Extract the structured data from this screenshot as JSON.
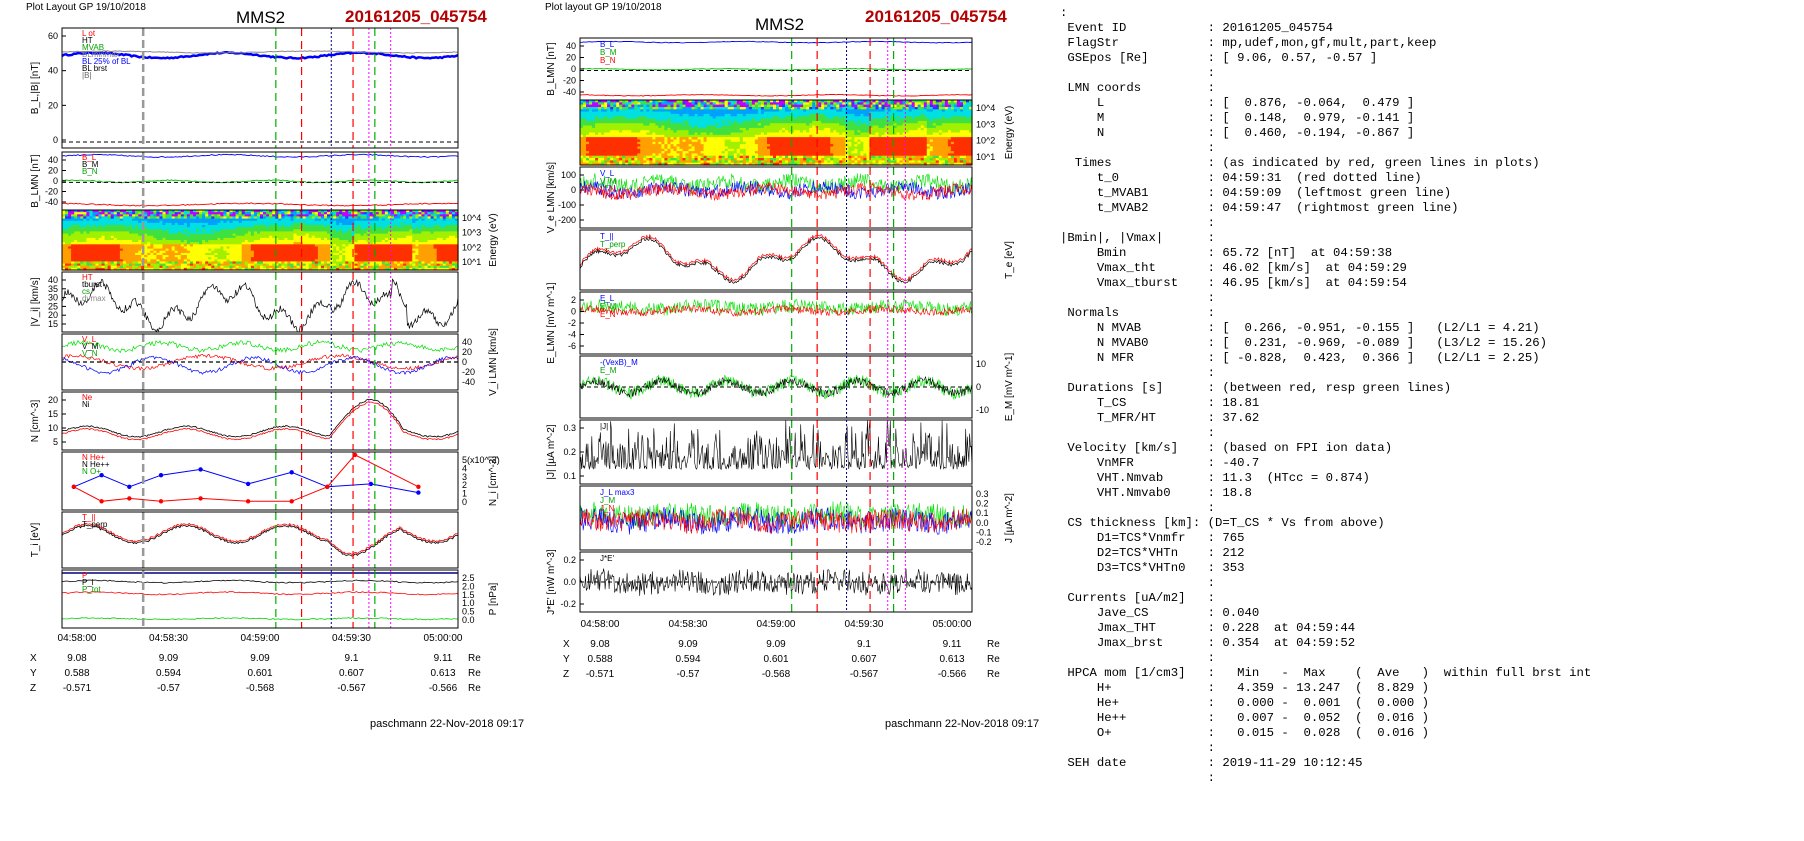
{
  "left": {
    "header_label": "Plot Layout GP 19/10/2018",
    "title": "MMS2",
    "event": "20161205_045754",
    "footer": "paschmann 22-Nov-2018 09:17",
    "panels": [
      {
        "ylabel": "B_L,|B| [nT]",
        "ticks": [
          "60",
          "40",
          "20",
          "0"
        ],
        "legend": [
          "L ot",
          "HT",
          "MVAB",
          "BLminmax",
          "BL 25% of BL",
          "BL brst",
          "|B|"
        ]
      },
      {
        "ylabel": "B_LMN [nT]",
        "ticks": [
          "40",
          "20",
          "0",
          "-20",
          "-40"
        ],
        "legend": [
          "B_L",
          "B_M",
          "B_N"
        ]
      },
      {
        "ylabel_right": "Energy (eV)",
        "ticks_right": [
          "10^4",
          "10^3",
          "10^2",
          "10^1"
        ]
      },
      {
        "ylabel": "|V_i| [km/s]",
        "ticks": [
          "40",
          "35",
          "30",
          "25",
          "20",
          "15"
        ],
        "legend": [
          "HT",
          "tburst",
          "cs",
          "dvmax"
        ]
      },
      {
        "ylabel_right": "V_i LMN [km/s]",
        "ticks_right": [
          "40",
          "20",
          "0",
          "-20",
          "-40"
        ],
        "legend": [
          "V_L",
          "V_M",
          "V_N"
        ]
      },
      {
        "ylabel": "N [cm^-3]",
        "ticks": [
          "20",
          "15",
          "10",
          "5"
        ],
        "legend": [
          "Ne",
          "Ni"
        ]
      },
      {
        "ylabel_right": "N_i [cm^-3]",
        "ticks_right": [
          "5(x10^-2)",
          "4",
          "3",
          "2",
          "1",
          "0"
        ],
        "legend": [
          "N He+",
          "N He++",
          "N O+"
        ]
      },
      {
        "ylabel": "T_i [eV]",
        "ticks": [],
        "legend": [
          "T_||",
          "T_perp"
        ]
      },
      {
        "ylabel_right": "P [nPa]",
        "ticks_right": [
          "2.5",
          "2.0",
          "1.5",
          "1.0",
          "0.5",
          "0.0"
        ],
        "legend": [
          "P",
          "P_i",
          "P_tot"
        ]
      }
    ],
    "time_ticks": [
      "04:58:00",
      "04:58:30",
      "04:59:00",
      "04:59:30",
      "05:00:00"
    ],
    "coords": {
      "labels": [
        "X",
        "Y",
        "Z"
      ],
      "X": [
        "9.08",
        "9.09",
        "9.09",
        "9.1",
        "9.11"
      ],
      "Y": [
        "0.588",
        "0.594",
        "0.601",
        "0.607",
        "0.613"
      ],
      "Z": [
        "-0.571",
        "-0.57",
        "-0.568",
        "-0.567",
        "-0.566"
      ],
      "unit": "Re"
    }
  },
  "middle": {
    "header_label": "Plot layout GP 19/10/2018",
    "title": "MMS2",
    "event": "20161205_045754",
    "footer": "paschmann 22-Nov-2018 09:17",
    "panels": [
      {
        "ylabel": "B_LMN [nT]",
        "ticks": [
          "40",
          "20",
          "0",
          "-20",
          "-40"
        ],
        "legend": [
          "B_L",
          "B_M",
          "B_N"
        ]
      },
      {
        "ylabel_right": "Energy (eV)",
        "ticks_right": [
          "10^4",
          "10^3",
          "10^2",
          "10^1"
        ]
      },
      {
        "ylabel": "V_e LMN [km/s]",
        "ticks": [
          "100",
          "0",
          "-100",
          "-200"
        ],
        "legend": [
          "V_L",
          "V_M",
          "V_N"
        ]
      },
      {
        "ylabel_right": "T_e [eV]",
        "ticks_right": [],
        "legend": [
          "T_||",
          "T_perp"
        ]
      },
      {
        "ylabel": "E_LMN [mV m^-1]",
        "ticks": [
          "2",
          "0",
          "-2",
          "-4",
          "-6"
        ],
        "legend": [
          "E_L",
          "E_M",
          "E_N"
        ]
      },
      {
        "ylabel_right": "E_M [mV m^-1]",
        "ticks_right": [
          "10",
          "0",
          "-10"
        ],
        "legend": [
          "-(VexB)_M",
          "E_M"
        ]
      },
      {
        "ylabel": "|J| [µA m^-2]",
        "ticks": [
          "0.3",
          "0.2",
          "0.1"
        ],
        "legend": [
          "|J|"
        ]
      },
      {
        "ylabel_right": "J [µA m^-2]",
        "ticks_right": [
          "0.3",
          "0.2",
          "0.1",
          "0.0",
          "-0.1",
          "-0.2"
        ],
        "legend": [
          "J_L max3",
          "J_M",
          "J_N"
        ]
      },
      {
        "ylabel": "J*E' [nW m^-3]",
        "ticks": [
          "0.2",
          "0.0",
          "-0.2"
        ],
        "legend": [
          "J*E'"
        ]
      }
    ],
    "time_ticks": [
      "04:58:00",
      "04:58:30",
      "04:59:00",
      "04:59:30",
      "05:00:00"
    ],
    "coords": {
      "labels": [
        "X",
        "Y",
        "Z"
      ],
      "X": [
        "9.08",
        "9.09",
        "9.09",
        "9.1",
        "9.11"
      ],
      "Y": [
        "0.588",
        "0.594",
        "0.601",
        "0.607",
        "0.613"
      ],
      "Z": [
        "-0.571",
        "-0.57",
        "-0.568",
        "-0.567",
        "-0.566"
      ],
      "unit": "Re"
    }
  },
  "info_lines": [
    ":",
    " Event ID           : 20161205_045754",
    " FlagStr            : mp,udef,mon,gf,mult,part,keep",
    " GSEpos [Re]        : [ 9.06, 0.57, -0.57 ]",
    "                    :",
    " LMN coords         :",
    "     L              : [  0.876, -0.064,  0.479 ]",
    "     M              : [  0.148,  0.979, -0.141 ]",
    "     N              : [  0.460, -0.194, -0.867 ]",
    "                    :",
    "  Times             : (as indicated by red, green lines in plots)",
    "     t_0            : 04:59:31  (red dotted line)",
    "     t_MVAB1        : 04:59:09  (leftmost green line)",
    "     t_MVAB2        : 04:59:47  (rightmost green line)",
    "                    :",
    "|Bmin|, |Vmax|      :",
    "     Bmin           : 65.72 [nT]  at 04:59:38",
    "     Vmax_tht       : 46.02 [km/s]  at 04:59:29",
    "     Vmax_tburst    : 46.95 [km/s]  at 04:59:54",
    "                    :",
    " Normals            :",
    "     N MVAB         : [  0.266, -0.951, -0.155 ]   (L2/L1 = 4.21)",
    "     N MVAB0        : [  0.231, -0.969, -0.089 ]   (L3/L2 = 15.26)",
    "     N MFR          : [ -0.828,  0.423,  0.366 ]   (L2/L1 = 2.25)",
    "                    :",
    " Durations [s]      : (between red, resp green lines)",
    "     T_CS           : 18.81",
    "     T_MFR/HT       : 37.62",
    "                    :",
    " Velocity [km/s]    : (based on FPI ion data)",
    "     VnMFR          : -40.7",
    "     VHT.Nmvab      : 11.3  (HTcc = 0.874)",
    "     VHT.Nmvab0     : 18.8",
    "                    :",
    " CS thickness [km]: (D=T_CS * Vs from above)",
    "     D1=TCS*Vnmfr   : 765",
    "     D2=TCS*VHTn    : 212",
    "     D3=TCS*VHTn0   : 353",
    "                    :",
    " Currents [uA/m2]   :",
    "     Jave_CS        : 0.040",
    "     Jmax_THT       : 0.228  at 04:59:44",
    "     Jmax_brst      : 0.354  at 04:59:52",
    "                    :",
    " HPCA mom [1/cm3]   :   Min   -  Max    (  Ave   )  within full brst int",
    "     H+             :   4.359 - 13.247  (  8.829 )",
    "     He+            :   0.000 -  0.001  (  0.000 )",
    "     He++           :   0.007 -  0.052  (  0.016 )",
    "     O+             :   0.015 -  0.028  (  0.016 )",
    "                    :",
    " SEH date           : 2019-11-29 10:12:45",
    "                    :"
  ],
  "colors": {
    "event": "#b30000",
    "bL": "#0000ff",
    "bM": "#00c000",
    "bN": "#ff0000",
    "mvab": "#00b000",
    "red": "#ff0000",
    "magenta": "#ff00ff",
    "navy": "#000080"
  },
  "chart_data": {
    "type": "line",
    "x": [
      "04:58:00",
      "04:58:30",
      "04:59:00",
      "04:59:30",
      "05:00:00"
    ],
    "xlabel": "",
    "vertical_markers": [
      {
        "time": "04:59:09",
        "color": "green",
        "style": "dashed"
      },
      {
        "time": "04:59:31",
        "color": "red",
        "style": "dashed"
      },
      {
        "time": "04:59:47",
        "color": "green",
        "style": "dashed"
      },
      {
        "time": "04:59:38",
        "color": "navy",
        "style": "dotted"
      }
    ]
  }
}
